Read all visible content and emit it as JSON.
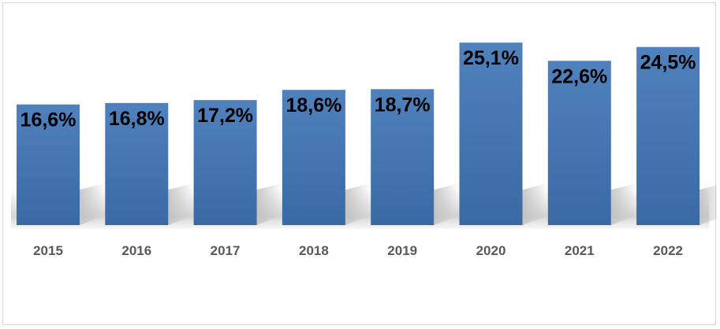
{
  "chart_data": {
    "type": "bar",
    "categories": [
      "2015",
      "2016",
      "2017",
      "2018",
      "2019",
      "2020",
      "2021",
      "2022"
    ],
    "values": [
      16.6,
      16.8,
      17.2,
      18.6,
      18.7,
      25.1,
      22.6,
      24.5
    ],
    "data_labels": [
      "16,6%",
      "16,8%",
      "17,2%",
      "18,6%",
      "18,7%",
      "25,1%",
      "22,6%",
      "24,5%"
    ],
    "title": "",
    "xlabel": "",
    "ylabel": "",
    "ylim": [
      0,
      27.5
    ],
    "grid": false,
    "legend": "none",
    "bar_color": "#4f81bd",
    "bar_color_dark": "#3a6aa3",
    "label_color": "#000000",
    "tick_color": "#595959"
  }
}
